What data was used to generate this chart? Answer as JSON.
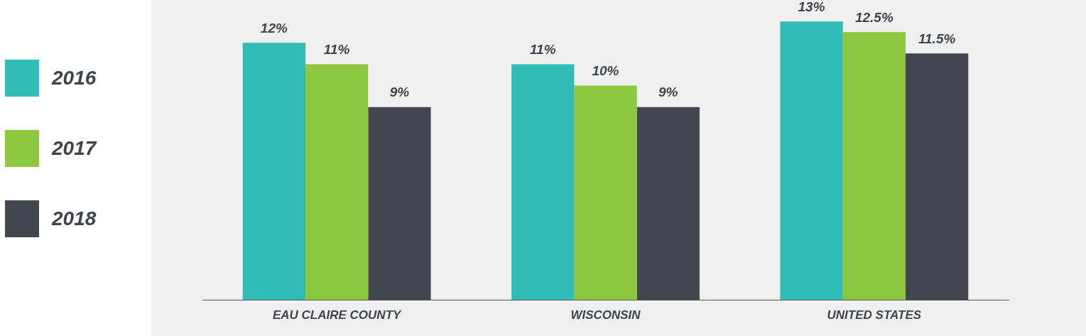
{
  "chart_data": {
    "type": "bar",
    "categories": [
      "EAU CLAIRE COUNTY",
      "WISCONSIN",
      "UNITED STATES"
    ],
    "series": [
      {
        "name": "2016",
        "color": "#31bdb6",
        "values": [
          12,
          11,
          13
        ],
        "value_labels": [
          "12%",
          "11%",
          "13%"
        ]
      },
      {
        "name": "2017",
        "color": "#8dc63f",
        "values": [
          11,
          10,
          12.5
        ],
        "value_labels": [
          "11%",
          "10%",
          "12.5%"
        ]
      },
      {
        "name": "2018",
        "color": "#43464e",
        "values": [
          9,
          9,
          11.5
        ],
        "value_labels": [
          "9%",
          "9%",
          "11.5%"
        ]
      }
    ],
    "ylim": [
      0,
      14
    ],
    "tick_labels": "x",
    "grid": false,
    "legend": "left"
  }
}
